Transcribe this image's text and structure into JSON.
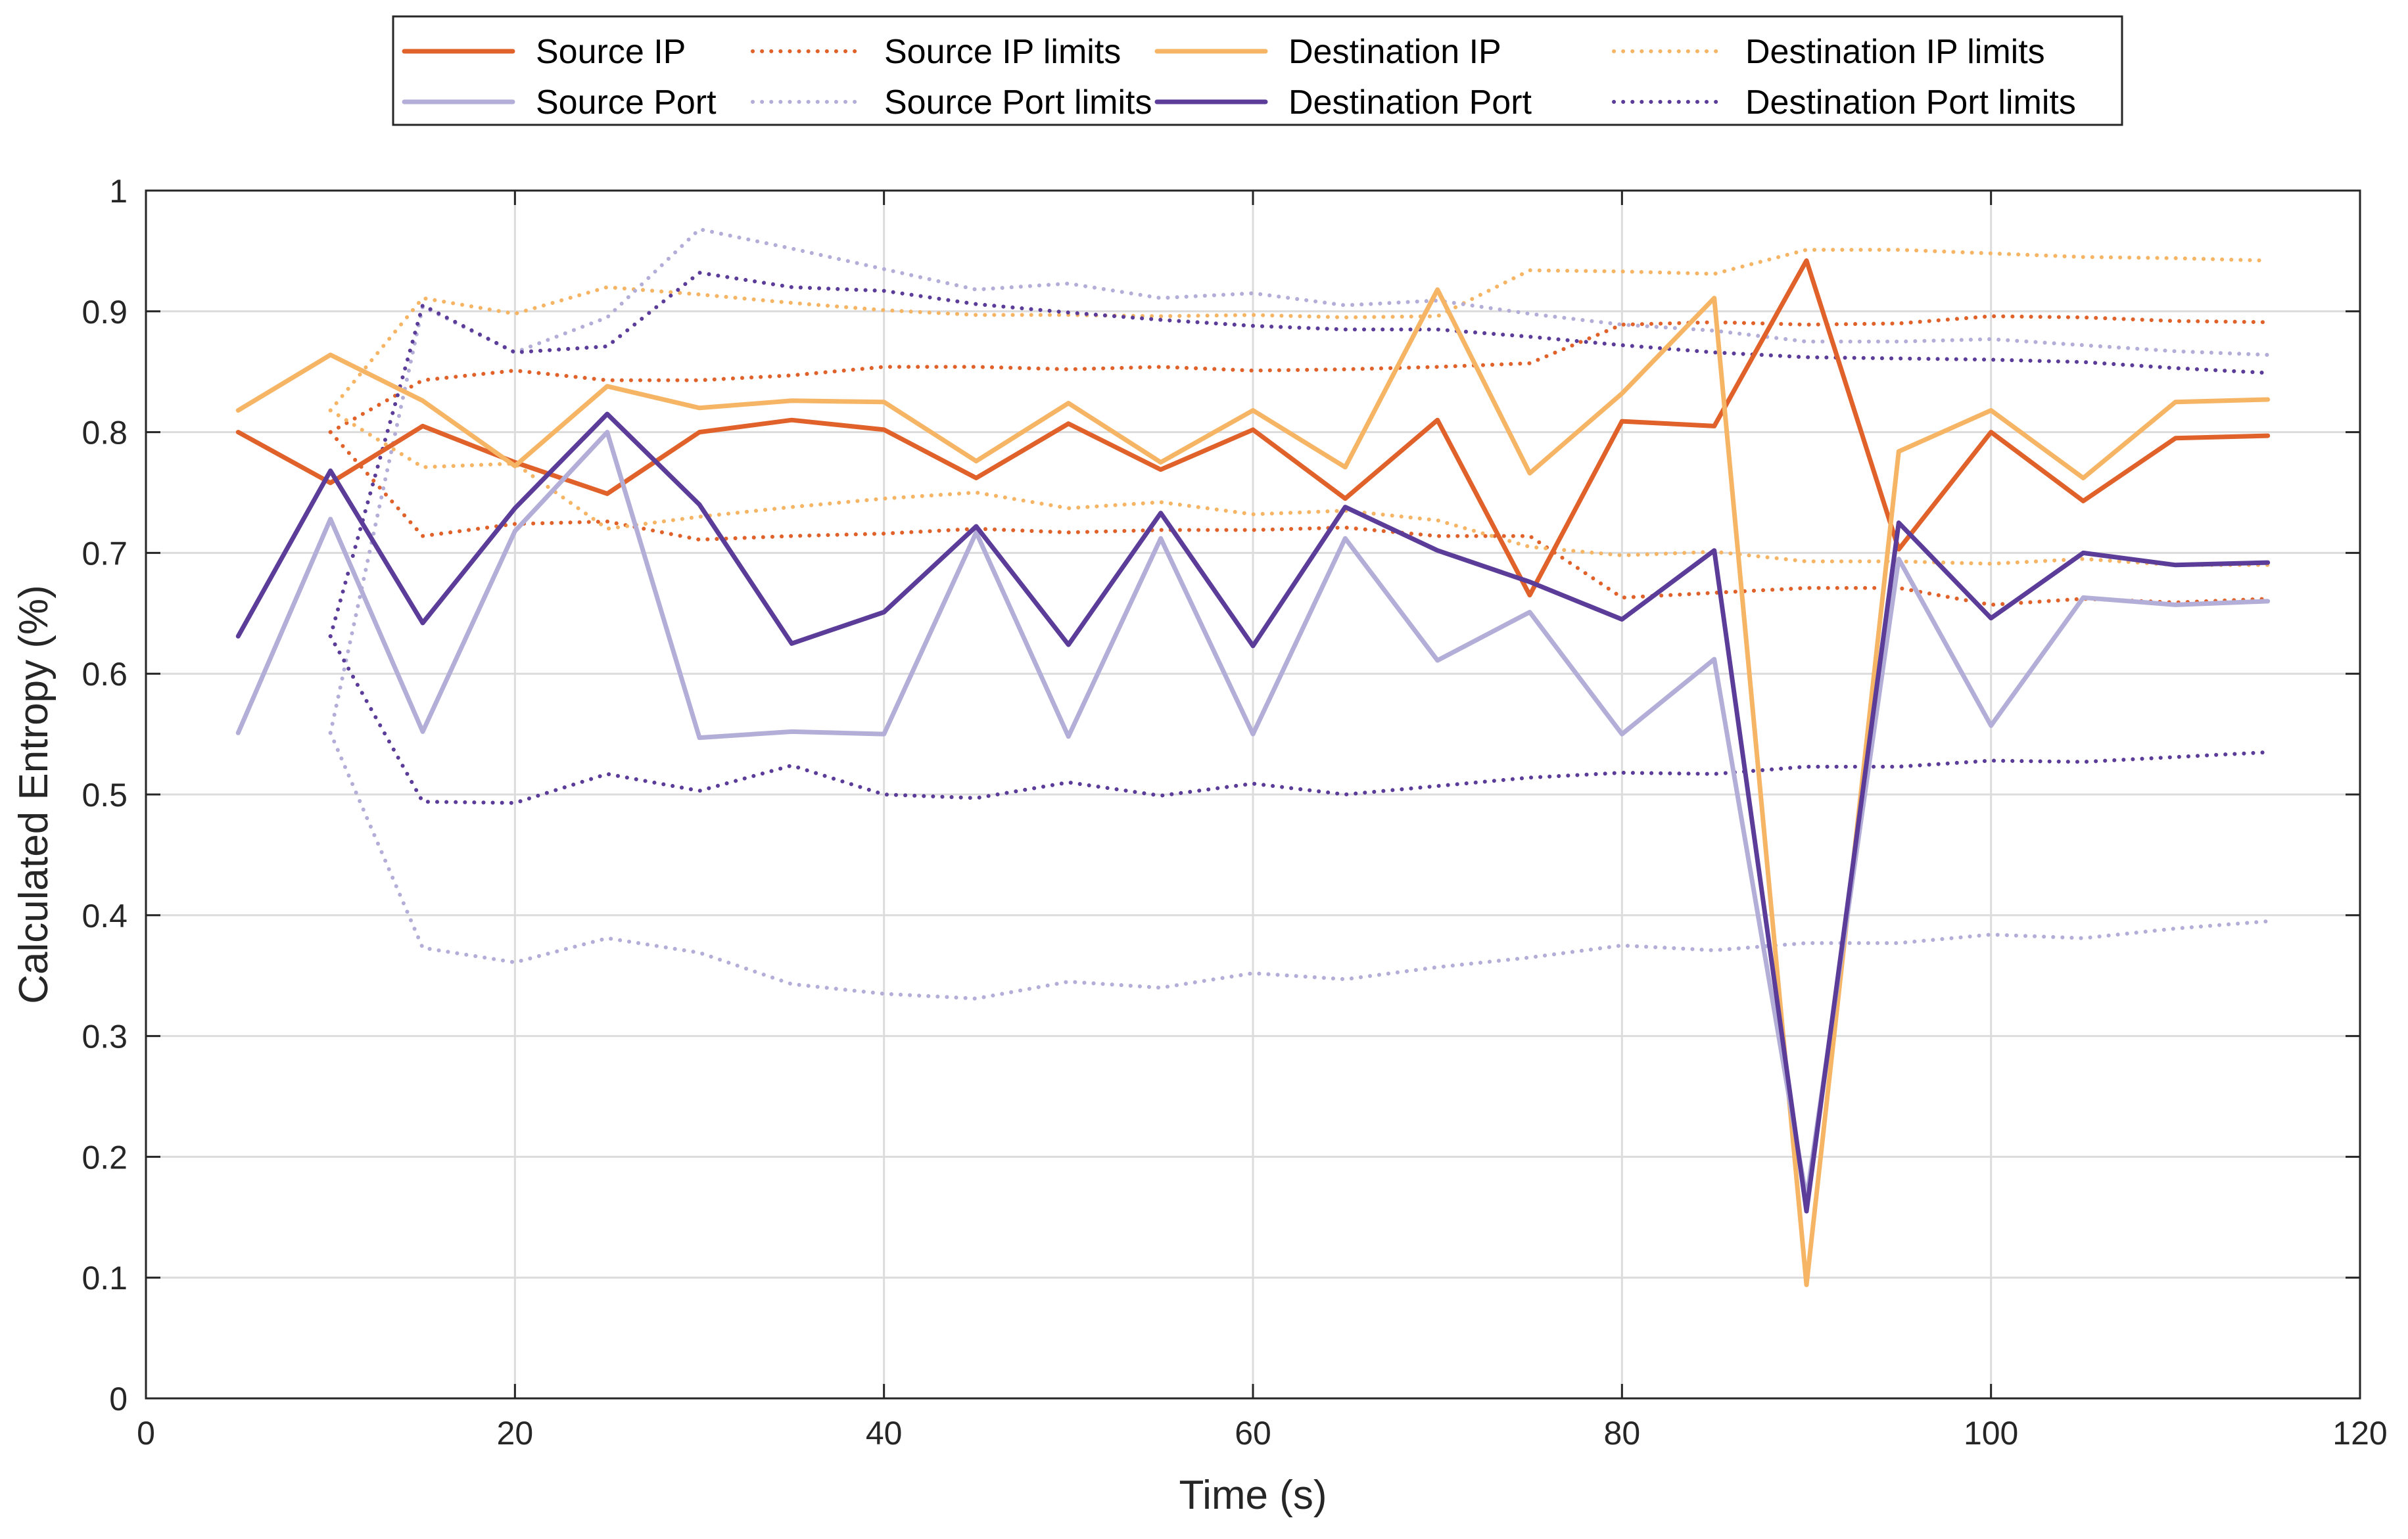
{
  "chart_data": {
    "type": "line",
    "title": "",
    "xlabel": "Time (s)",
    "ylabel": "Calculated Entropy (%)",
    "xlim": [
      0,
      120
    ],
    "ylim": [
      0,
      1
    ],
    "xticks": [
      "0",
      "20",
      "40",
      "60",
      "80",
      "100",
      "120"
    ],
    "yticks": [
      "0",
      "0.1",
      "0.2",
      "0.3",
      "0.4",
      "0.5",
      "0.6",
      "0.7",
      "0.8",
      "0.9",
      "1"
    ],
    "grid": true,
    "legend_position": "top-center, outside",
    "series": [
      {
        "name": "Source IP",
        "color": "#E0622A",
        "style": "solid",
        "points": [
          [
            5,
            0.8
          ],
          [
            10,
            0.758
          ],
          [
            15,
            0.805
          ],
          [
            20,
            0.775
          ],
          [
            25,
            0.749
          ],
          [
            30,
            0.8
          ],
          [
            35,
            0.81
          ],
          [
            40,
            0.802
          ],
          [
            45,
            0.762
          ],
          [
            50,
            0.807
          ],
          [
            55,
            0.769
          ],
          [
            60,
            0.802
          ],
          [
            65,
            0.745
          ],
          [
            70,
            0.81
          ],
          [
            75,
            0.665
          ],
          [
            80,
            0.809
          ],
          [
            85,
            0.805
          ],
          [
            90,
            0.942
          ],
          [
            95,
            0.703
          ],
          [
            100,
            0.8
          ],
          [
            105,
            0.743
          ],
          [
            110,
            0.795
          ],
          [
            115,
            0.797
          ]
        ]
      },
      {
        "name": "Source IP limits",
        "color": "#E0622A",
        "style": "dotted",
        "points": [
          [
            10,
            0.8
          ],
          [
            15,
            0.843
          ],
          [
            20,
            0.851
          ],
          [
            25,
            0.843
          ],
          [
            30,
            0.843
          ],
          [
            35,
            0.847
          ],
          [
            40,
            0.854
          ],
          [
            45,
            0.854
          ],
          [
            50,
            0.852
          ],
          [
            55,
            0.854
          ],
          [
            60,
            0.851
          ],
          [
            65,
            0.852
          ],
          [
            70,
            0.854
          ],
          [
            75,
            0.857
          ],
          [
            80,
            0.889
          ],
          [
            85,
            0.891
          ],
          [
            90,
            0.889
          ],
          [
            95,
            0.89
          ],
          [
            100,
            0.896
          ],
          [
            105,
            0.895
          ],
          [
            110,
            0.892
          ],
          [
            115,
            0.891
          ]
        ],
        "points_lower": [
          [
            10,
            0.8
          ],
          [
            15,
            0.714
          ],
          [
            20,
            0.724
          ],
          [
            25,
            0.726
          ],
          [
            30,
            0.711
          ],
          [
            35,
            0.714
          ],
          [
            40,
            0.716
          ],
          [
            45,
            0.72
          ],
          [
            50,
            0.717
          ],
          [
            55,
            0.719
          ],
          [
            60,
            0.719
          ],
          [
            65,
            0.721
          ],
          [
            70,
            0.714
          ],
          [
            75,
            0.714
          ],
          [
            80,
            0.663
          ],
          [
            85,
            0.667
          ],
          [
            90,
            0.671
          ],
          [
            95,
            0.671
          ],
          [
            100,
            0.657
          ],
          [
            105,
            0.662
          ],
          [
            110,
            0.659
          ],
          [
            115,
            0.662
          ]
        ]
      },
      {
        "name": "Destination IP",
        "color": "#F6B565",
        "style": "solid",
        "points": [
          [
            5,
            0.818
          ],
          [
            10,
            0.864
          ],
          [
            15,
            0.826
          ],
          [
            20,
            0.772
          ],
          [
            25,
            0.838
          ],
          [
            30,
            0.82
          ],
          [
            35,
            0.826
          ],
          [
            40,
            0.825
          ],
          [
            45,
            0.776
          ],
          [
            50,
            0.824
          ],
          [
            55,
            0.775
          ],
          [
            60,
            0.818
          ],
          [
            65,
            0.771
          ],
          [
            70,
            0.918
          ],
          [
            75,
            0.766
          ],
          [
            80,
            0.832
          ],
          [
            85,
            0.911
          ],
          [
            90,
            0.094
          ],
          [
            95,
            0.784
          ],
          [
            100,
            0.818
          ],
          [
            105,
            0.762
          ],
          [
            110,
            0.825
          ],
          [
            115,
            0.827
          ]
        ]
      },
      {
        "name": "Destination IP limits",
        "color": "#F6B565",
        "style": "dotted",
        "points": [
          [
            10,
            0.818
          ],
          [
            15,
            0.911
          ],
          [
            20,
            0.898
          ],
          [
            25,
            0.92
          ],
          [
            30,
            0.914
          ],
          [
            35,
            0.907
          ],
          [
            40,
            0.901
          ],
          [
            45,
            0.897
          ],
          [
            50,
            0.897
          ],
          [
            55,
            0.896
          ],
          [
            60,
            0.897
          ],
          [
            65,
            0.895
          ],
          [
            70,
            0.896
          ],
          [
            75,
            0.934
          ],
          [
            80,
            0.933
          ],
          [
            85,
            0.931
          ],
          [
            90,
            0.951
          ],
          [
            95,
            0.951
          ],
          [
            100,
            0.948
          ],
          [
            105,
            0.945
          ],
          [
            110,
            0.944
          ],
          [
            115,
            0.942
          ]
        ],
        "points_lower": [
          [
            10,
            0.818
          ],
          [
            15,
            0.771
          ],
          [
            20,
            0.774
          ],
          [
            25,
            0.72
          ],
          [
            30,
            0.73
          ],
          [
            35,
            0.738
          ],
          [
            40,
            0.745
          ],
          [
            45,
            0.75
          ],
          [
            50,
            0.737
          ],
          [
            55,
            0.742
          ],
          [
            60,
            0.732
          ],
          [
            65,
            0.735
          ],
          [
            70,
            0.727
          ],
          [
            75,
            0.705
          ],
          [
            80,
            0.698
          ],
          [
            85,
            0.701
          ],
          [
            90,
            0.693
          ],
          [
            95,
            0.693
          ],
          [
            100,
            0.691
          ],
          [
            105,
            0.695
          ],
          [
            110,
            0.69
          ],
          [
            115,
            0.69
          ]
        ]
      },
      {
        "name": "Source Port",
        "color": "#B3AED8",
        "style": "solid",
        "points": [
          [
            5,
            0.551
          ],
          [
            10,
            0.728
          ],
          [
            15,
            0.552
          ],
          [
            20,
            0.718
          ],
          [
            25,
            0.8
          ],
          [
            30,
            0.547
          ],
          [
            35,
            0.552
          ],
          [
            40,
            0.55
          ],
          [
            45,
            0.717
          ],
          [
            50,
            0.548
          ],
          [
            55,
            0.712
          ],
          [
            60,
            0.55
          ],
          [
            65,
            0.712
          ],
          [
            70,
            0.611
          ],
          [
            75,
            0.651
          ],
          [
            80,
            0.55
          ],
          [
            85,
            0.612
          ],
          [
            90,
            0.165
          ],
          [
            95,
            0.695
          ],
          [
            100,
            0.557
          ],
          [
            105,
            0.663
          ],
          [
            110,
            0.657
          ],
          [
            115,
            0.66
          ]
        ]
      },
      {
        "name": "Source Port limits",
        "color": "#B3AED8",
        "style": "dotted",
        "points": [
          [
            10,
            0.551
          ],
          [
            15,
            0.904
          ],
          [
            20,
            0.866
          ],
          [
            25,
            0.895
          ],
          [
            30,
            0.968
          ],
          [
            35,
            0.952
          ],
          [
            40,
            0.935
          ],
          [
            45,
            0.918
          ],
          [
            50,
            0.923
          ],
          [
            55,
            0.911
          ],
          [
            60,
            0.915
          ],
          [
            65,
            0.905
          ],
          [
            70,
            0.909
          ],
          [
            75,
            0.898
          ],
          [
            80,
            0.889
          ],
          [
            85,
            0.884
          ],
          [
            90,
            0.875
          ],
          [
            95,
            0.875
          ],
          [
            100,
            0.877
          ],
          [
            105,
            0.872
          ],
          [
            110,
            0.867
          ],
          [
            115,
            0.864
          ]
        ],
        "points_lower": [
          [
            10,
            0.551
          ],
          [
            15,
            0.373
          ],
          [
            20,
            0.361
          ],
          [
            25,
            0.381
          ],
          [
            30,
            0.369
          ],
          [
            35,
            0.343
          ],
          [
            40,
            0.335
          ],
          [
            45,
            0.331
          ],
          [
            50,
            0.345
          ],
          [
            55,
            0.34
          ],
          [
            60,
            0.352
          ],
          [
            65,
            0.347
          ],
          [
            70,
            0.357
          ],
          [
            75,
            0.365
          ],
          [
            80,
            0.375
          ],
          [
            85,
            0.371
          ],
          [
            90,
            0.377
          ],
          [
            95,
            0.377
          ],
          [
            100,
            0.384
          ],
          [
            105,
            0.381
          ],
          [
            110,
            0.389
          ],
          [
            115,
            0.395
          ]
        ]
      },
      {
        "name": "Destination Port",
        "color": "#5B3D99",
        "style": "solid",
        "points": [
          [
            5,
            0.631
          ],
          [
            10,
            0.768
          ],
          [
            15,
            0.642
          ],
          [
            20,
            0.737
          ],
          [
            25,
            0.815
          ],
          [
            30,
            0.74
          ],
          [
            35,
            0.625
          ],
          [
            40,
            0.651
          ],
          [
            45,
            0.722
          ],
          [
            50,
            0.624
          ],
          [
            55,
            0.733
          ],
          [
            60,
            0.623
          ],
          [
            65,
            0.738
          ],
          [
            70,
            0.702
          ],
          [
            75,
            0.676
          ],
          [
            80,
            0.645
          ],
          [
            85,
            0.702
          ],
          [
            90,
            0.155
          ],
          [
            95,
            0.725
          ],
          [
            100,
            0.646
          ],
          [
            105,
            0.7
          ],
          [
            110,
            0.69
          ],
          [
            115,
            0.692
          ]
        ]
      },
      {
        "name": "Destination Port limits",
        "color": "#5B3D99",
        "style": "dotted",
        "points": [
          [
            10,
            0.631
          ],
          [
            15,
            0.905
          ],
          [
            20,
            0.866
          ],
          [
            25,
            0.871
          ],
          [
            30,
            0.932
          ],
          [
            35,
            0.92
          ],
          [
            40,
            0.917
          ],
          [
            45,
            0.906
          ],
          [
            50,
            0.899
          ],
          [
            55,
            0.893
          ],
          [
            60,
            0.888
          ],
          [
            65,
            0.885
          ],
          [
            70,
            0.885
          ],
          [
            75,
            0.879
          ],
          [
            80,
            0.872
          ],
          [
            85,
            0.866
          ],
          [
            90,
            0.862
          ],
          [
            95,
            0.861
          ],
          [
            100,
            0.86
          ],
          [
            105,
            0.858
          ],
          [
            110,
            0.853
          ],
          [
            115,
            0.849
          ]
        ],
        "points_lower": [
          [
            10,
            0.631
          ],
          [
            15,
            0.494
          ],
          [
            20,
            0.493
          ],
          [
            25,
            0.517
          ],
          [
            30,
            0.503
          ],
          [
            35,
            0.524
          ],
          [
            40,
            0.5
          ],
          [
            45,
            0.497
          ],
          [
            50,
            0.51
          ],
          [
            55,
            0.499
          ],
          [
            60,
            0.509
          ],
          [
            65,
            0.5
          ],
          [
            70,
            0.507
          ],
          [
            75,
            0.514
          ],
          [
            80,
            0.518
          ],
          [
            85,
            0.517
          ],
          [
            90,
            0.523
          ],
          [
            95,
            0.523
          ],
          [
            100,
            0.528
          ],
          [
            105,
            0.527
          ],
          [
            110,
            0.531
          ],
          [
            115,
            0.535
          ]
        ]
      }
    ]
  }
}
